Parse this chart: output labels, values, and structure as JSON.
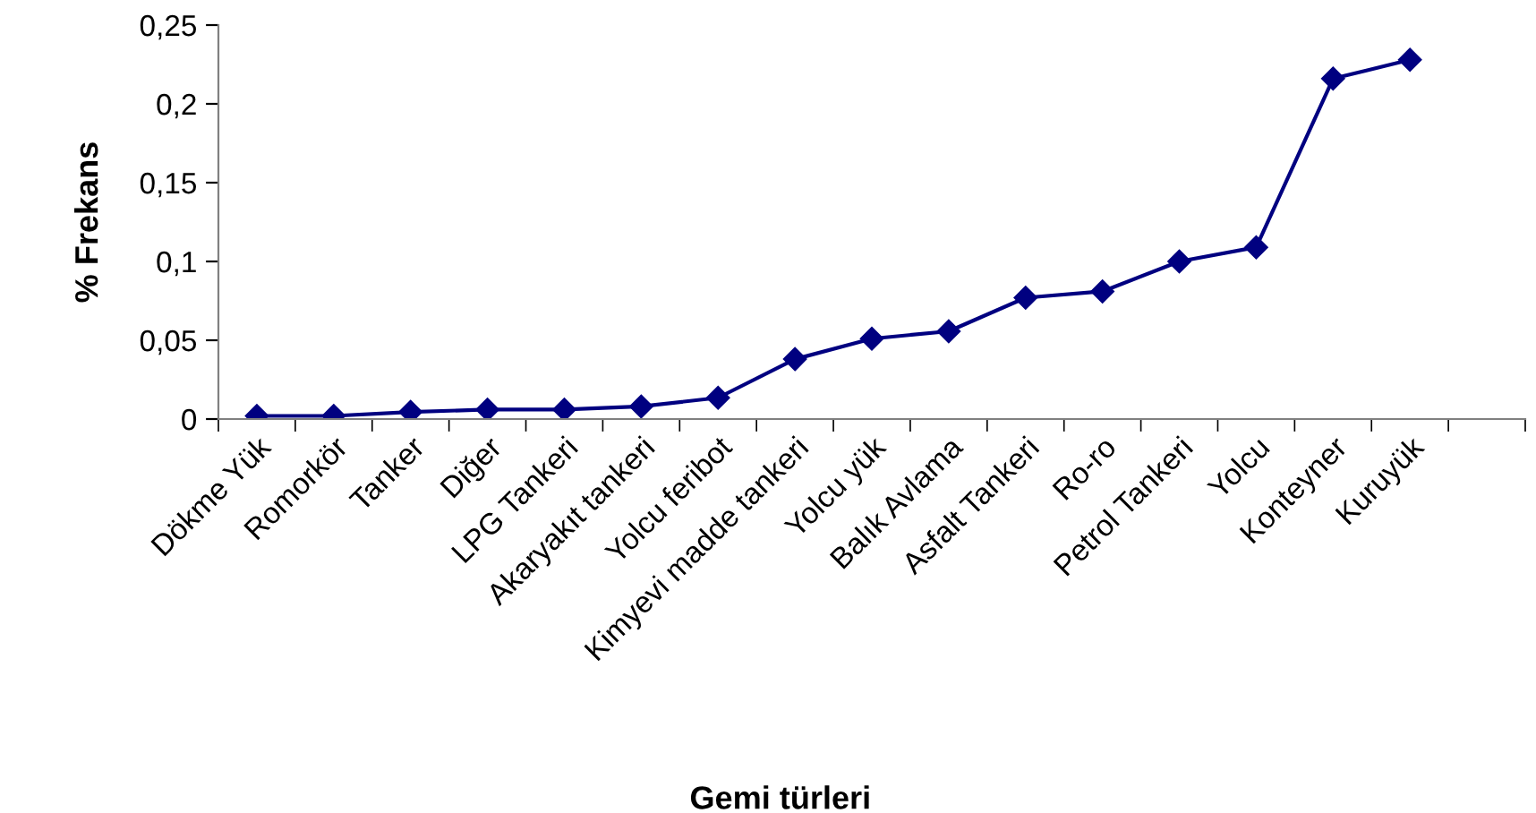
{
  "chart_data": {
    "type": "line",
    "xlabel": "Gemi türleri",
    "ylabel": "% Frekans",
    "categories": [
      "Dökme Yük",
      "Romorkör",
      "Tanker",
      "Diğer",
      "LPG Tankeri",
      "Akaryakıt tankeri",
      "Yolcu feribot",
      "Kimyevi madde tankeri",
      "Yolcu yük",
      "Balık Avlama",
      "Asfalt Tankeri",
      "Ro-ro",
      "Petrol Tankeri",
      "Yolcu",
      "Konteyner",
      "Kuruyük",
      null
    ],
    "series": [
      {
        "color": "#000080",
        "values": [
          0.002,
          0.002,
          0.0045,
          0.006,
          0.006,
          0.008,
          0.0135,
          0.038,
          0.051,
          0.0557,
          0.077,
          0.081,
          0.1,
          0.109,
          0.216,
          0.228,
          null
        ]
      }
    ],
    "ylim": [
      0,
      0.25
    ],
    "yticks": [
      0,
      {
        "value": 0.05,
        "label": "0,05"
      },
      {
        "value": 0.1,
        "label": "0,1"
      },
      {
        "value": 0.15,
        "label": "0,15"
      },
      {
        "value": 0.2,
        "label": "0,2"
      },
      {
        "value": 0.25,
        "label": "0,25"
      }
    ],
    "marker": "diamond",
    "line_style": "solid",
    "grid": false,
    "legend": false
  }
}
